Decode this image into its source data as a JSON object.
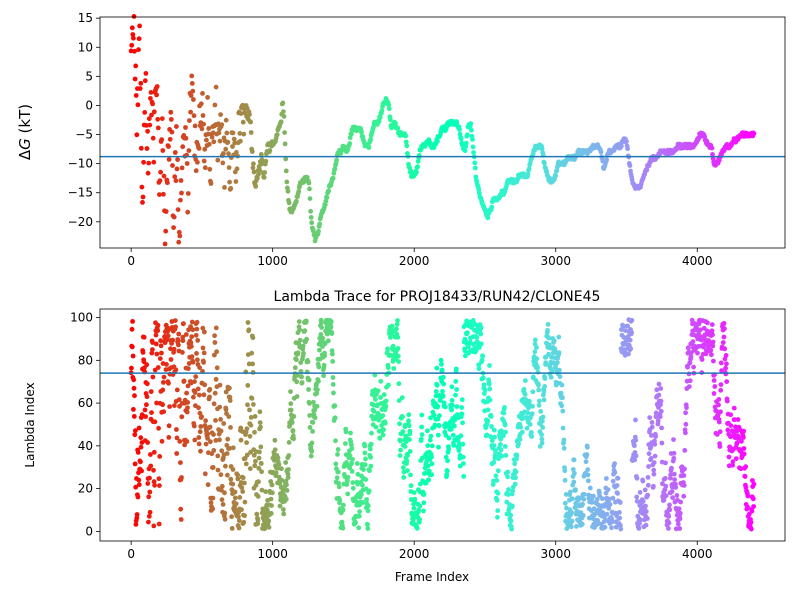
{
  "chart_data": [
    {
      "type": "scatter",
      "title": "",
      "xlabel": "",
      "ylabel": "ΔG (kT)",
      "ylabel_symbol": "G",
      "ylabel_unit": "(kT)",
      "xlim": [
        -220,
        4620
      ],
      "ylim": [
        -24.5,
        15.2
      ],
      "xticks": [
        0,
        1000,
        2000,
        3000,
        4000
      ],
      "xtick_labels": [
        "0",
        "1000",
        "2000",
        "3000",
        "4000"
      ],
      "yticks": [
        15,
        10,
        5,
        0,
        -5,
        -10,
        -15,
        -20
      ],
      "ytick_labels": [
        "15",
        "10",
        "5",
        "0",
        "−5",
        "−10",
        "−15",
        "−20"
      ],
      "hline": -8.8,
      "hline_color": "#1f77b4",
      "colormap": "rainbow (red at frame 0 → purple at last frame)",
      "keypoints": [
        [
          0,
          8
        ],
        [
          20,
          14
        ],
        [
          40,
          -3
        ],
        [
          60,
          12
        ],
        [
          80,
          -18
        ],
        [
          100,
          8
        ],
        [
          120,
          -12
        ],
        [
          140,
          2
        ],
        [
          160,
          -6
        ],
        [
          180,
          6
        ],
        [
          200,
          -15
        ],
        [
          220,
          -5
        ],
        [
          240,
          -22
        ],
        [
          260,
          -10
        ],
        [
          280,
          -2
        ],
        [
          300,
          -18
        ],
        [
          320,
          -8
        ],
        [
          340,
          -22
        ],
        [
          360,
          -12
        ],
        [
          380,
          -5
        ],
        [
          400,
          -16
        ],
        [
          420,
          2
        ],
        [
          440,
          -1
        ],
        [
          460,
          -10
        ],
        [
          480,
          -4
        ],
        [
          500,
          0
        ],
        [
          520,
          -8
        ],
        [
          540,
          -3
        ],
        [
          560,
          -12
        ],
        [
          580,
          -4
        ],
        [
          600,
          -1
        ],
        [
          620,
          -8
        ],
        [
          640,
          -3
        ],
        [
          660,
          -10
        ],
        [
          680,
          -5
        ],
        [
          700,
          -12
        ],
        [
          720,
          -6
        ],
        [
          740,
          -9
        ],
        [
          760,
          -4
        ],
        [
          780,
          -2
        ],
        [
          800,
          -1
        ],
        [
          820,
          -1
        ],
        [
          840,
          -2
        ],
        [
          860,
          -10
        ],
        [
          880,
          -14
        ],
        [
          900,
          -11
        ],
        [
          920,
          -9
        ],
        [
          940,
          -12
        ],
        [
          960,
          -8
        ],
        [
          980,
          -7
        ],
        [
          1000,
          -7
        ],
        [
          1020,
          -6
        ],
        [
          1040,
          -4
        ],
        [
          1060,
          -3
        ],
        [
          1070,
          1
        ],
        [
          1080,
          -2
        ],
        [
          1090,
          -8
        ],
        [
          1100,
          -13
        ],
        [
          1120,
          -18
        ],
        [
          1140,
          -18
        ],
        [
          1160,
          -17
        ],
        [
          1180,
          -15
        ],
        [
          1200,
          -13
        ],
        [
          1220,
          -13
        ],
        [
          1240,
          -12
        ],
        [
          1260,
          -14
        ],
        [
          1270,
          -19
        ],
        [
          1280,
          -21
        ],
        [
          1300,
          -23
        ],
        [
          1320,
          -22
        ],
        [
          1340,
          -19
        ],
        [
          1360,
          -18
        ],
        [
          1380,
          -16
        ],
        [
          1400,
          -14
        ],
        [
          1420,
          -13
        ],
        [
          1440,
          -11
        ],
        [
          1460,
          -8
        ],
        [
          1480,
          -8
        ],
        [
          1500,
          -7
        ],
        [
          1520,
          -8
        ],
        [
          1540,
          -7
        ],
        [
          1560,
          -4
        ],
        [
          1580,
          -4
        ],
        [
          1600,
          -4
        ],
        [
          1620,
          -4
        ],
        [
          1640,
          -6
        ],
        [
          1660,
          -7
        ],
        [
          1680,
          -7
        ],
        [
          1700,
          -5
        ],
        [
          1720,
          -3
        ],
        [
          1740,
          -3
        ],
        [
          1760,
          -2
        ],
        [
          1780,
          0
        ],
        [
          1800,
          1
        ],
        [
          1820,
          0
        ],
        [
          1840,
          -4
        ],
        [
          1860,
          -3
        ],
        [
          1880,
          -4
        ],
        [
          1900,
          -5
        ],
        [
          1920,
          -5
        ],
        [
          1940,
          -5
        ],
        [
          1960,
          -10
        ],
        [
          1980,
          -12
        ],
        [
          2000,
          -12
        ],
        [
          2020,
          -11
        ],
        [
          2040,
          -8
        ],
        [
          2060,
          -7
        ],
        [
          2080,
          -7
        ],
        [
          2100,
          -6
        ],
        [
          2120,
          -7
        ],
        [
          2140,
          -7
        ],
        [
          2160,
          -6
        ],
        [
          2180,
          -5
        ],
        [
          2200,
          -4
        ],
        [
          2220,
          -4
        ],
        [
          2240,
          -3
        ],
        [
          2260,
          -3
        ],
        [
          2280,
          -3
        ],
        [
          2300,
          -3
        ],
        [
          2320,
          -4
        ],
        [
          2340,
          -7
        ],
        [
          2360,
          -8
        ],
        [
          2380,
          -4
        ],
        [
          2400,
          -3
        ],
        [
          2420,
          -8
        ],
        [
          2440,
          -13
        ],
        [
          2460,
          -15
        ],
        [
          2480,
          -17
        ],
        [
          2500,
          -18
        ],
        [
          2520,
          -19
        ],
        [
          2540,
          -18
        ],
        [
          2560,
          -16
        ],
        [
          2580,
          -16
        ],
        [
          2600,
          -16
        ],
        [
          2620,
          -15
        ],
        [
          2640,
          -15
        ],
        [
          2660,
          -13
        ],
        [
          2680,
          -13
        ],
        [
          2700,
          -13
        ],
        [
          2720,
          -13
        ],
        [
          2740,
          -12
        ],
        [
          2760,
          -12
        ],
        [
          2780,
          -12
        ],
        [
          2800,
          -12
        ],
        [
          2820,
          -10
        ],
        [
          2840,
          -8
        ],
        [
          2860,
          -7
        ],
        [
          2880,
          -7
        ],
        [
          2900,
          -7
        ],
        [
          2920,
          -10
        ],
        [
          2940,
          -12
        ],
        [
          2960,
          -13
        ],
        [
          2980,
          -13
        ],
        [
          3000,
          -12
        ],
        [
          3020,
          -10
        ],
        [
          3040,
          -10
        ],
        [
          3060,
          -10
        ],
        [
          3080,
          -9
        ],
        [
          3100,
          -9
        ],
        [
          3120,
          -9
        ],
        [
          3140,
          -9
        ],
        [
          3160,
          -8
        ],
        [
          3180,
          -8
        ],
        [
          3200,
          -8
        ],
        [
          3220,
          -8
        ],
        [
          3240,
          -8
        ],
        [
          3260,
          -7
        ],
        [
          3280,
          -7
        ],
        [
          3300,
          -7
        ],
        [
          3320,
          -8
        ],
        [
          3340,
          -11
        ],
        [
          3360,
          -9
        ],
        [
          3380,
          -8
        ],
        [
          3400,
          -8
        ],
        [
          3420,
          -7
        ],
        [
          3440,
          -7
        ],
        [
          3460,
          -7
        ],
        [
          3480,
          -6
        ],
        [
          3500,
          -6
        ],
        [
          3520,
          -10
        ],
        [
          3540,
          -13
        ],
        [
          3560,
          -14
        ],
        [
          3580,
          -14
        ],
        [
          3600,
          -14
        ],
        [
          3620,
          -12
        ],
        [
          3640,
          -11
        ],
        [
          3660,
          -10
        ],
        [
          3680,
          -9
        ],
        [
          3700,
          -9
        ],
        [
          3720,
          -9
        ],
        [
          3740,
          -8
        ],
        [
          3760,
          -8
        ],
        [
          3780,
          -8
        ],
        [
          3800,
          -8
        ],
        [
          3820,
          -8
        ],
        [
          3840,
          -8
        ],
        [
          3860,
          -7
        ],
        [
          3880,
          -7
        ],
        [
          3900,
          -7
        ],
        [
          3920,
          -7
        ],
        [
          3940,
          -7
        ],
        [
          3960,
          -7
        ],
        [
          3980,
          -7
        ],
        [
          4000,
          -6
        ],
        [
          4020,
          -5
        ],
        [
          4040,
          -5
        ],
        [
          4060,
          -6
        ],
        [
          4080,
          -7
        ],
        [
          4100,
          -7
        ],
        [
          4120,
          -10
        ],
        [
          4140,
          -10
        ],
        [
          4160,
          -9
        ],
        [
          4180,
          -8
        ],
        [
          4200,
          -7
        ],
        [
          4220,
          -7
        ],
        [
          4240,
          -7
        ],
        [
          4260,
          -6
        ],
        [
          4280,
          -6
        ],
        [
          4300,
          -5
        ],
        [
          4320,
          -5
        ],
        [
          4340,
          -5
        ],
        [
          4360,
          -5
        ],
        [
          4380,
          -5
        ],
        [
          4400,
          -5
        ]
      ]
    },
    {
      "type": "scatter",
      "title": "Lambda Trace for PROJ18433/RUN42/CLONE45",
      "xlabel": "Frame Index",
      "ylabel": "Lambda Index",
      "xlim": [
        -220,
        4620
      ],
      "ylim": [
        -4.5,
        104
      ],
      "xticks": [
        0,
        1000,
        2000,
        3000,
        4000
      ],
      "xtick_labels": [
        "0",
        "1000",
        "2000",
        "3000",
        "4000"
      ],
      "yticks": [
        0,
        20,
        40,
        60,
        80,
        100
      ],
      "ytick_labels": [
        "0",
        "20",
        "40",
        "60",
        "80",
        "100"
      ],
      "hline": 74,
      "hline_color": "#1f77b4",
      "colormap": "rainbow (red at frame 0 → purple at last frame)",
      "x_range": [
        0,
        4400
      ],
      "y_range": [
        0,
        100
      ]
    }
  ]
}
